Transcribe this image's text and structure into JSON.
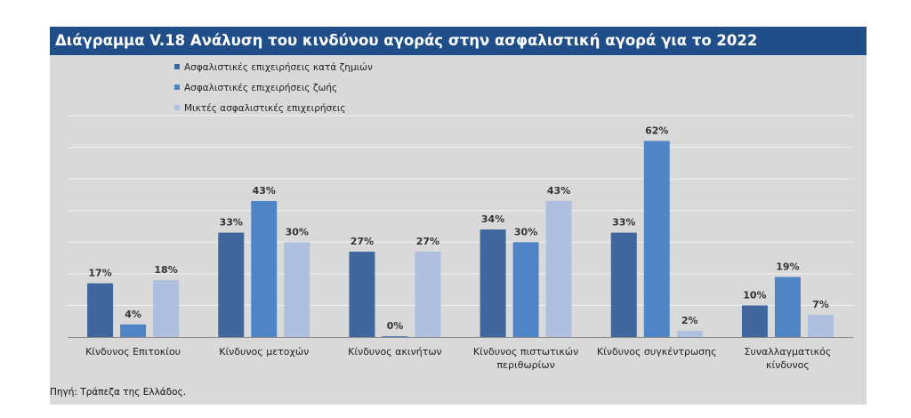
{
  "title": "Διάγραμμα V.18 Ανάλυση του κινδύνου αγοράς στην ασφαλιστική αγορά για το 2022",
  "source": "Πηγή: Τράπεζα της Ελλάδος.",
  "colors": {
    "title_bar": "#1f4e88",
    "panel_bg": "#d9d9d9",
    "gridline": "#f2f2f2"
  },
  "chart_data": {
    "type": "bar",
    "title": "Διάγραμμα V.18 Ανάλυση του κινδύνου αγοράς στην ασφαλιστική αγορά για το 2022",
    "categories": [
      [
        "Κίνδυνος Επιτοκίου"
      ],
      [
        "Κίνδυνος μετοχών"
      ],
      [
        "Κίνδυνος ακινήτων"
      ],
      [
        "Κίνδυνος πιστωτικών",
        "περιθωρίων"
      ],
      [
        "Κίνδυνος συγκέντρωσης"
      ],
      [
        "Συναλλαγματικός",
        "κίνδυνος"
      ]
    ],
    "series": [
      {
        "name": "Ασφαλιστικές επιχειρήσεις κατά ζημιών",
        "color": "#3f679d",
        "values": [
          17,
          33,
          27,
          34,
          33,
          10
        ]
      },
      {
        "name": "Ασφαλιστικές επιχειρήσεις ζωής",
        "color": "#4f85c6",
        "values": [
          4,
          43,
          0,
          30,
          62,
          19
        ]
      },
      {
        "name": "Μικτές ασφαλιστικές επιχειρήσεις",
        "color": "#aebfdf",
        "values": [
          18,
          30,
          27,
          43,
          2,
          7
        ]
      }
    ],
    "value_suffix": "%",
    "ylim": [
      0,
      70
    ],
    "grid": true,
    "legend_position": "top-left"
  }
}
